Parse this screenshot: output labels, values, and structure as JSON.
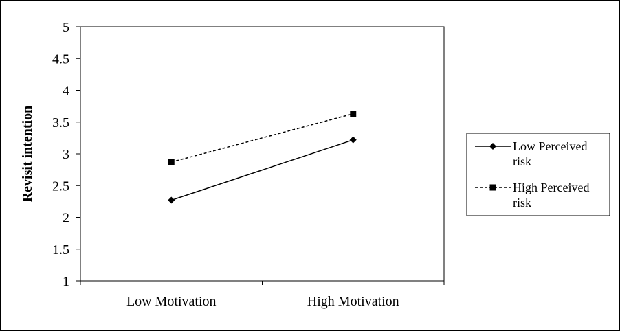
{
  "chart_data": {
    "type": "line",
    "categories": [
      "Low Motivation",
      "High Motivation"
    ],
    "ylabel": "Revisit intention",
    "ylim": [
      1,
      5
    ],
    "yticks": [
      "1",
      "1.5",
      "2",
      "2.5",
      "3",
      "3.5",
      "4",
      "4.5",
      "5"
    ],
    "grid": false,
    "legend_position": "right",
    "series": [
      {
        "name": "Low Perceived risk",
        "values": [
          2.27,
          3.22
        ],
        "marker": "diamond",
        "dash": "solid",
        "color": "#000000"
      },
      {
        "name": "High Perceived risk",
        "values": [
          2.87,
          3.63
        ],
        "marker": "square",
        "dash": "dashed",
        "color": "#000000"
      }
    ]
  }
}
